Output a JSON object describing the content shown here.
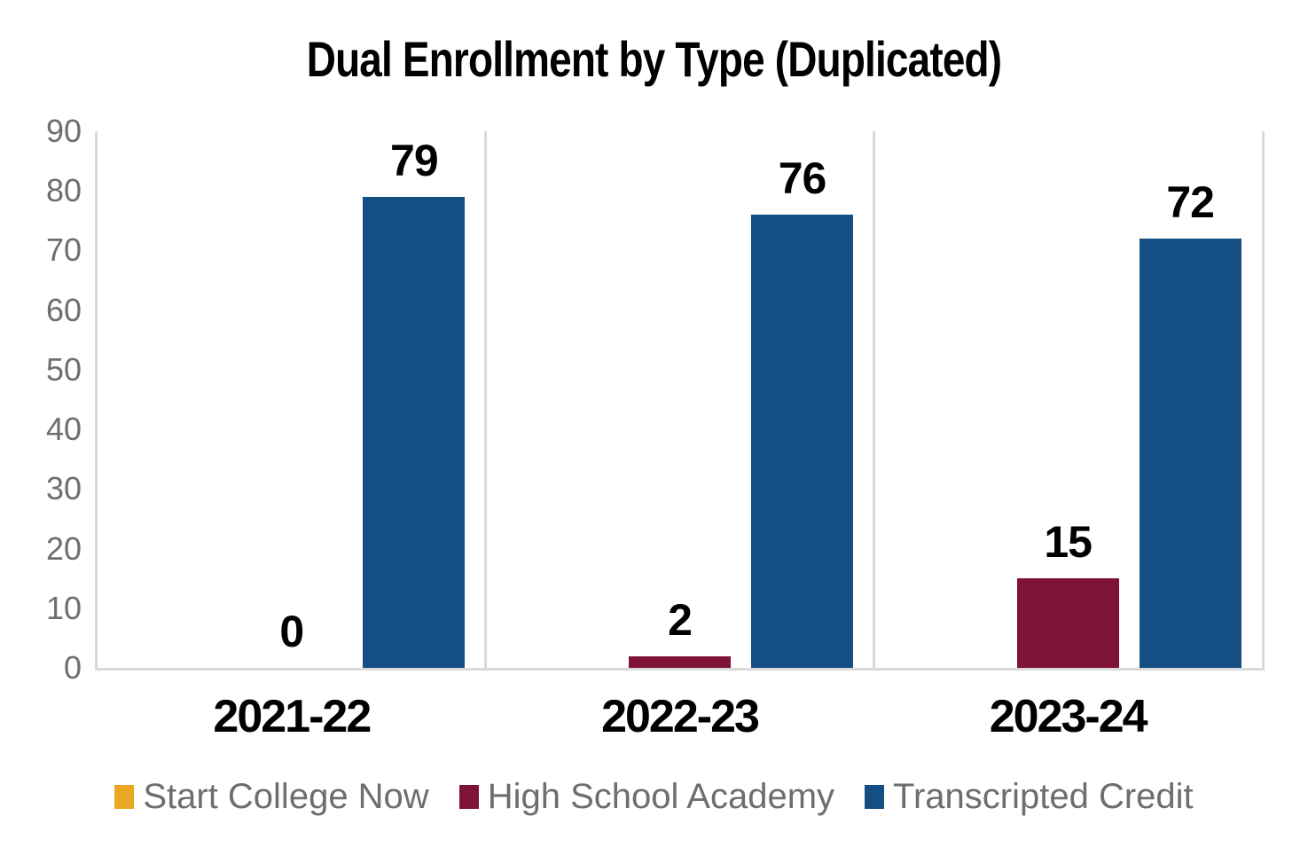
{
  "title": "Dual Enrollment by Type (Duplicated)",
  "chart_data": {
    "type": "bar",
    "title": "Dual Enrollment by Type (Duplicated)",
    "categories": [
      "2021-22",
      "2022-23",
      "2023-24"
    ],
    "series": [
      {
        "name": "Start College Now",
        "color": "#E9A723",
        "values": [
          0,
          0,
          0
        ],
        "data_labels": [
          "",
          "",
          ""
        ]
      },
      {
        "name": "High School Academy",
        "color": "#7E1337",
        "values": [
          0,
          2,
          15
        ],
        "data_labels": [
          "0",
          "2",
          "15"
        ]
      },
      {
        "name": "Transcripted Credit",
        "color": "#144E82",
        "values": [
          79,
          76,
          72
        ],
        "data_labels": [
          "79",
          "76",
          "72"
        ]
      }
    ],
    "xlabel": "",
    "ylabel": "",
    "ylim": [
      0,
      90
    ],
    "yticks": [
      0,
      10,
      20,
      30,
      40,
      50,
      60,
      70,
      80,
      90
    ],
    "grid": "vertical category separators only",
    "legend_position": "bottom",
    "data_labels_visible": true
  },
  "style_colors": {
    "axis_line": "#D9D9D9",
    "y_tick_text": "#6E6E6E",
    "legend_text": "#6E6E6E",
    "title_text": "#000000",
    "category_label_text": "#000000",
    "background": "#FFFFFF"
  }
}
